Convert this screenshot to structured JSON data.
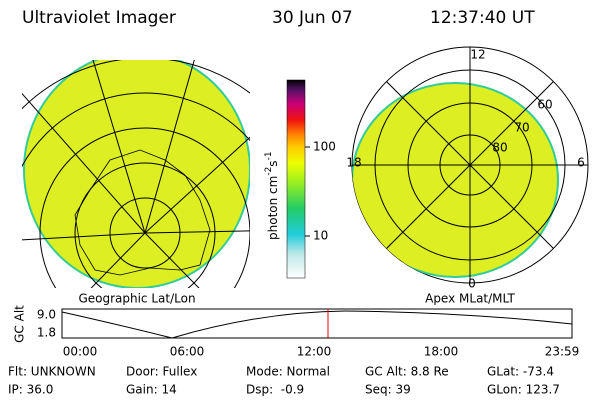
{
  "header": {
    "title": "Ultraviolet Imager",
    "date": "30 Jun 07",
    "time": "12:37:40 UT"
  },
  "colorbar": {
    "label_parts": [
      "photon cm",
      "-2",
      "s",
      "-1"
    ],
    "ticks": [
      "100",
      "10"
    ]
  },
  "left_map": {
    "caption": "Geographic Lat/Lon"
  },
  "right_map": {
    "caption": "Apex MLat/MLT",
    "mlt_labels": [
      "12",
      "6",
      "18",
      "0"
    ],
    "lat_labels": [
      "60",
      "70",
      "80"
    ]
  },
  "altitude_plot": {
    "ylabel": "GC Alt",
    "yticks": [
      "9.0",
      "1.8"
    ],
    "xticks": [
      "00:00",
      "06:00",
      "12:00",
      "18:00",
      "23:59"
    ]
  },
  "info": [
    [
      "Flt: UNKNOWN",
      "IP: 36.0"
    ],
    [
      "Door: Fullex",
      "Gain: 14"
    ],
    [
      "Mode: Normal",
      "Dsp:  -0.9"
    ],
    [
      "GC Alt: 8.8 Re",
      "Seq: 39"
    ],
    [
      "GLat: -73.4",
      "GLon: 123.7"
    ]
  ]
}
